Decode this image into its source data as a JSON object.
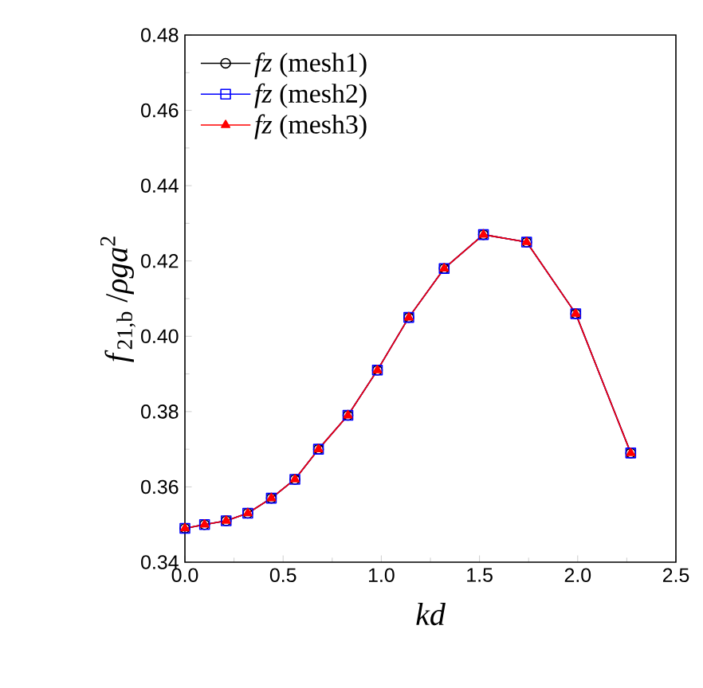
{
  "chart_data": {
    "type": "line",
    "xlabel": "kd",
    "ylabel": "*f*$_{21,b}$ /*ρga*$^{2}$",
    "x": [
      0,
      0.1,
      0.21,
      0.32,
      0.44,
      0.56,
      0.68,
      0.83,
      0.98,
      1.14,
      1.32,
      1.52,
      1.74,
      1.99,
      2.27
    ],
    "series": [
      {
        "name": "*fz*  (mesh1)",
        "color": "#000000",
        "marker": "circle",
        "values": [
          0.349,
          0.35,
          0.351,
          0.353,
          0.357,
          0.362,
          0.37,
          0.379,
          0.391,
          0.405,
          0.418,
          0.427,
          0.425,
          0.406,
          0.369
        ]
      },
      {
        "name": "*fz*  (mesh2)",
        "color": "#0000ff",
        "marker": "square",
        "values": [
          0.349,
          0.35,
          0.351,
          0.353,
          0.357,
          0.362,
          0.37,
          0.379,
          0.391,
          0.405,
          0.418,
          0.427,
          0.425,
          0.406,
          0.369
        ]
      },
      {
        "name": "*fz*  (mesh3)",
        "color": "#ff0000",
        "marker": "triangle",
        "values": [
          0.349,
          0.35,
          0.351,
          0.353,
          0.357,
          0.362,
          0.37,
          0.379,
          0.391,
          0.405,
          0.418,
          0.427,
          0.425,
          0.406,
          0.369
        ]
      }
    ],
    "xlim": [
      0,
      2.5
    ],
    "ylim": [
      0.34,
      0.48
    ],
    "xticks": [
      {
        "value": 0,
        "label": "0.0"
      },
      {
        "value": 0.5,
        "label": "0.5"
      },
      {
        "value": 1,
        "label": "1.0"
      },
      {
        "value": 1.5,
        "label": "1.5"
      },
      {
        "value": 2,
        "label": "2.0"
      },
      {
        "value": 2.5,
        "label": "2.5"
      }
    ],
    "yticks": [
      0.34,
      0.36,
      0.38,
      {
        "value": 0.4,
        "label": "0.40"
      },
      0.42,
      0.44,
      0.46,
      0.48
    ],
    "legend": "top left",
    "grid": false,
    "line_style": "solid"
  }
}
